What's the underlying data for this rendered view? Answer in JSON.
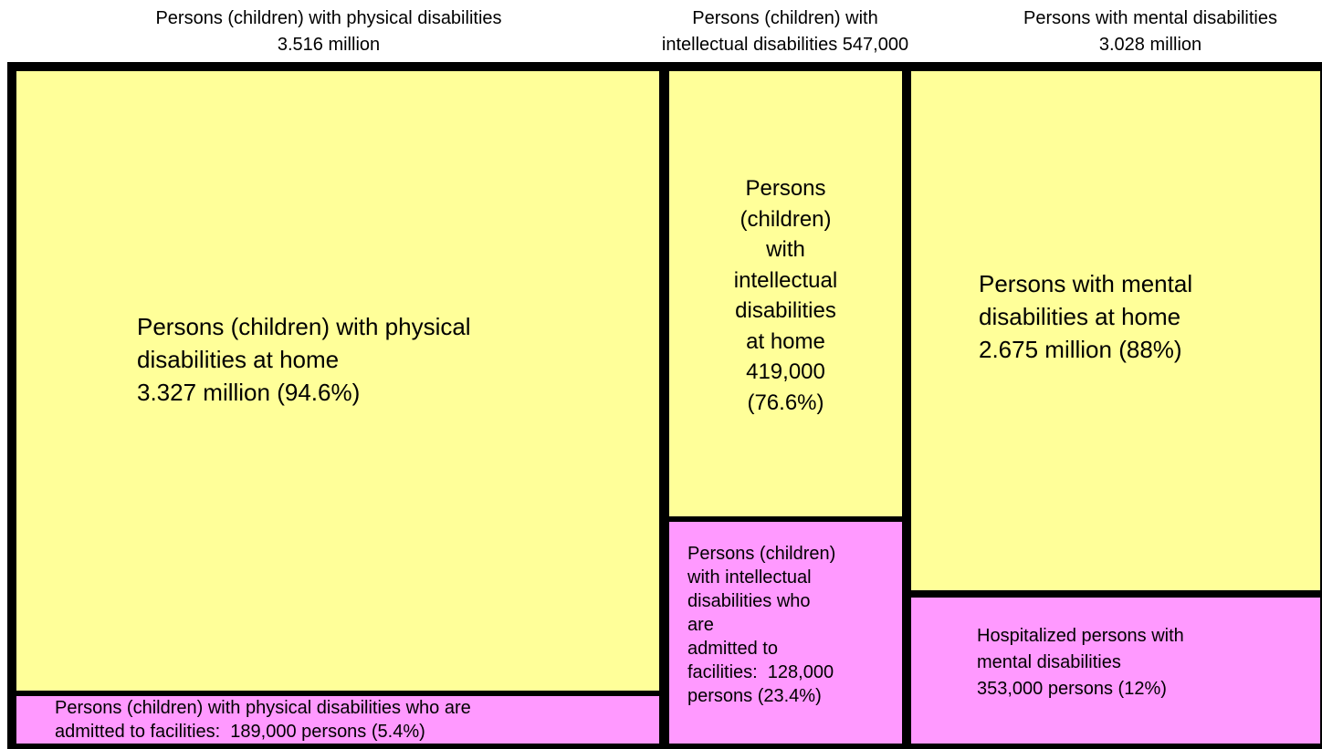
{
  "groups": [
    {
      "heading": [
        "Persons (children) with physical disabilities",
        "3.516 million"
      ],
      "cells": [
        {
          "lines": [
            "Persons (children) with physical",
            "disabilities at home",
            "3.327 million (94.6%)"
          ]
        },
        {
          "lines": [
            "Persons (children) with physical disabilities who are",
            "admitted to facilities:  189,000 persons (5.4%)"
          ]
        }
      ]
    },
    {
      "heading": [
        "Persons (children) with",
        "intellectual disabilities 547,000"
      ],
      "cells": [
        {
          "lines": [
            "Persons",
            "(children)",
            "with",
            "intellectual",
            "disabilities",
            "at home",
            "419,000",
            "(76.6%)"
          ]
        },
        {
          "lines": [
            "Persons (children)",
            "with intellectual",
            "disabilities who",
            "are",
            "admitted to",
            "facilities:  128,000",
            "persons (23.4%)"
          ]
        }
      ]
    },
    {
      "heading": [
        "Persons with mental disabilities",
        "3.028 million"
      ],
      "cells": [
        {
          "lines": [
            "Persons with mental",
            "disabilities at home",
            "2.675 million (88%)"
          ]
        },
        {
          "lines": [
            "Hospitalized persons with",
            "mental disabilities",
            "353,000 persons (12%)"
          ]
        }
      ]
    }
  ]
}
